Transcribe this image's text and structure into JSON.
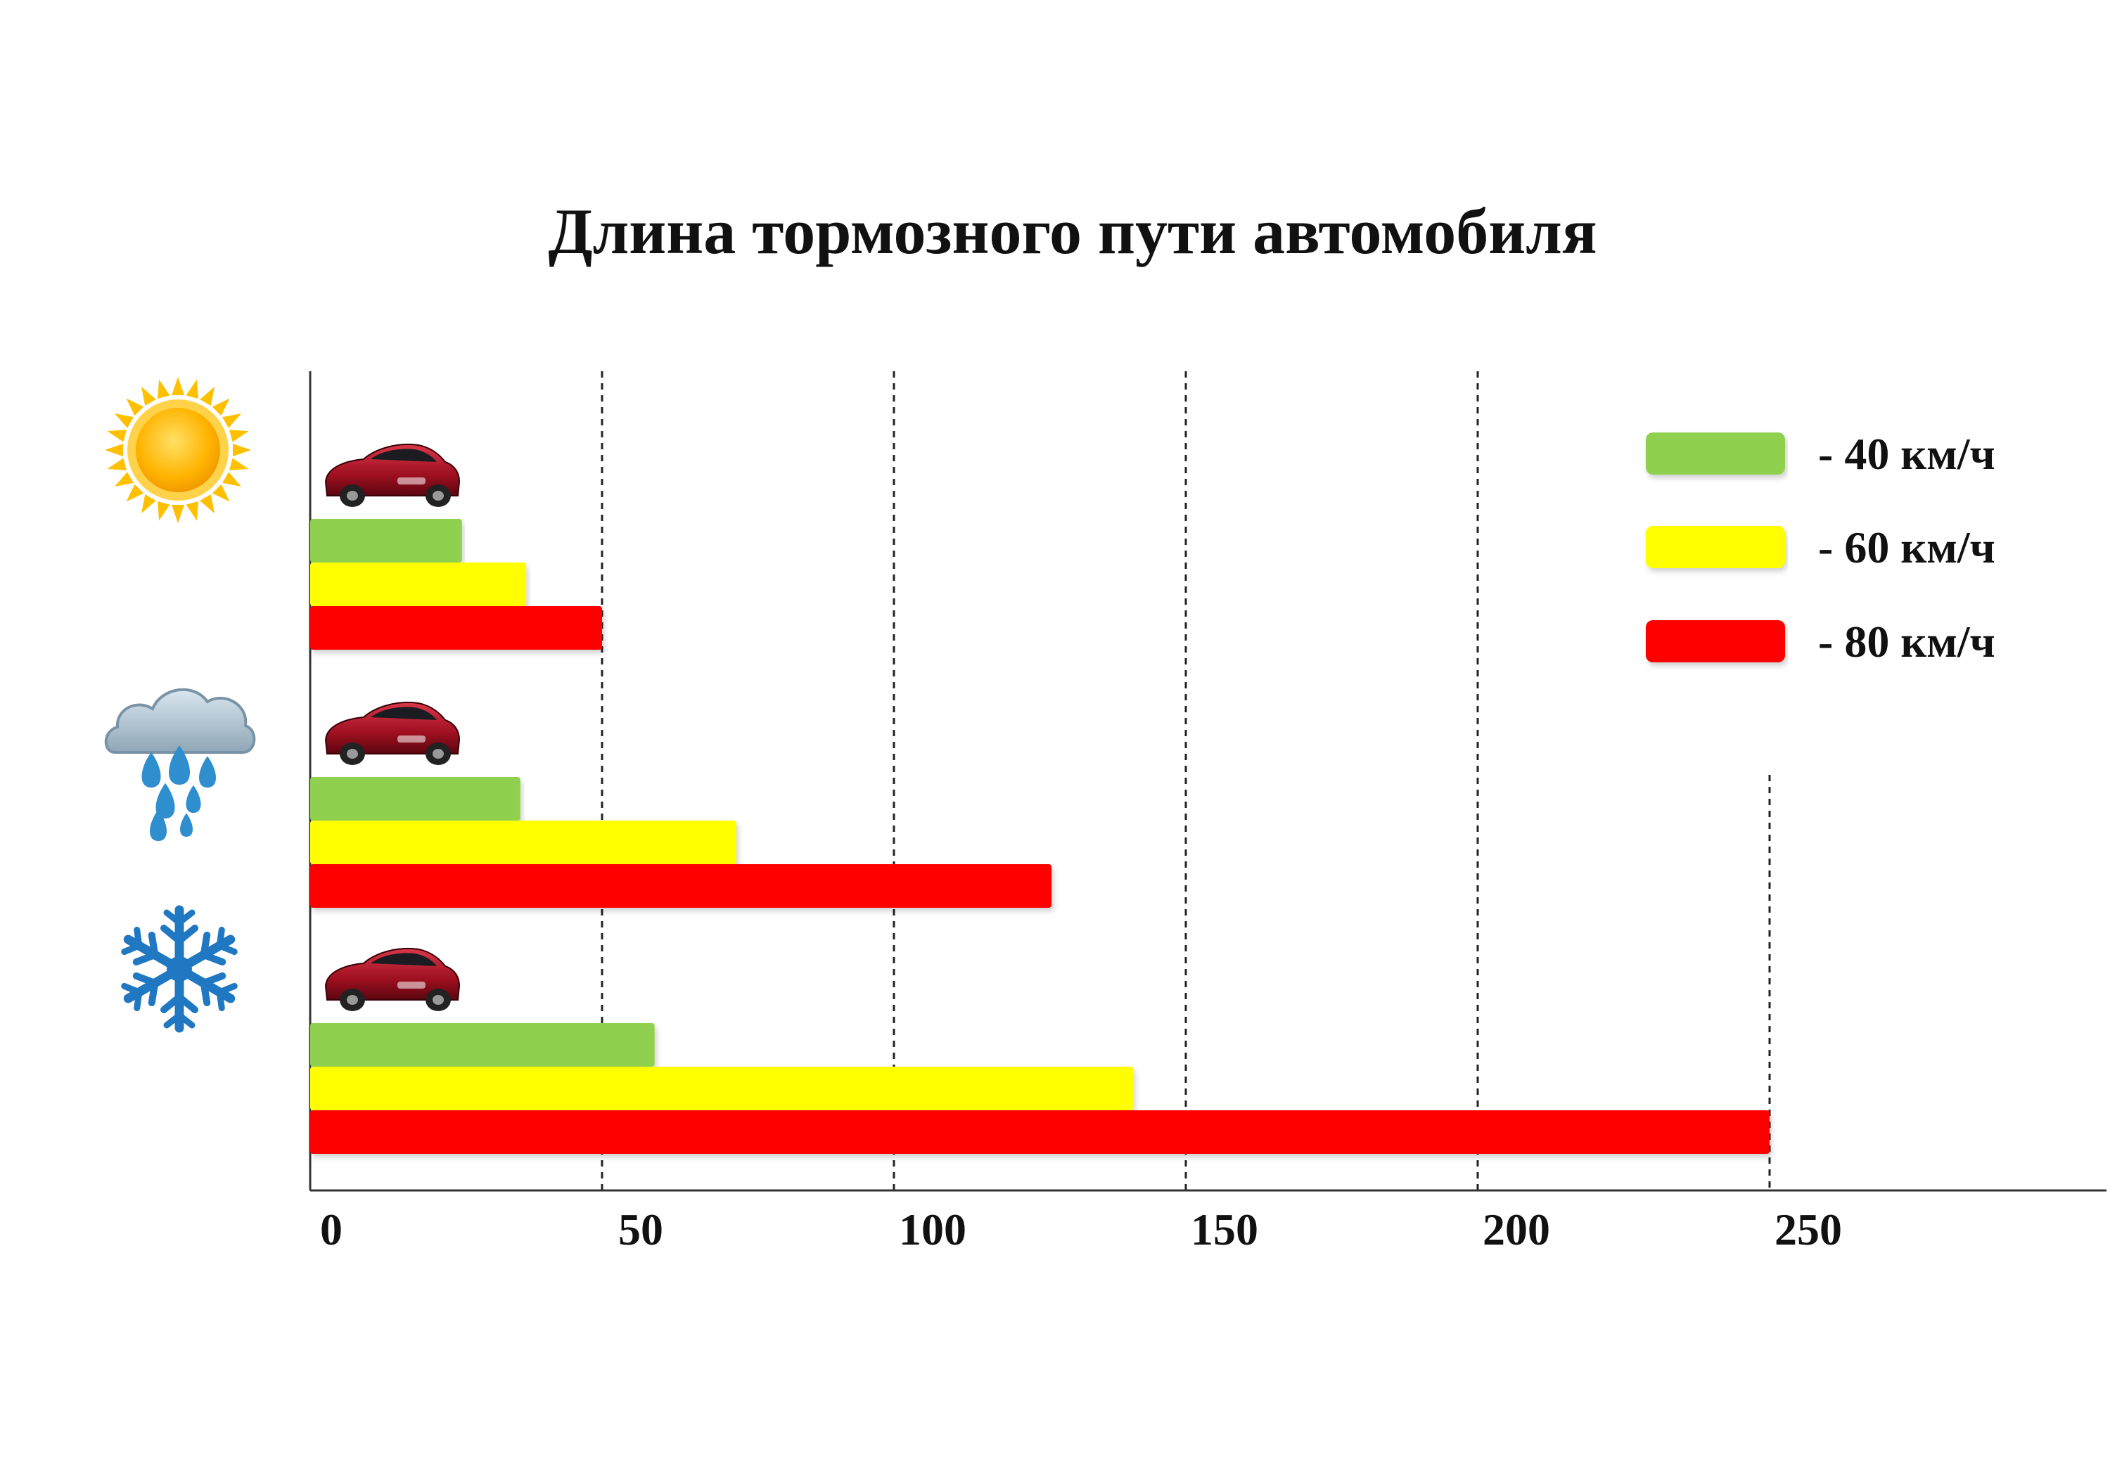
{
  "chart_data": {
    "type": "bar",
    "orientation": "horizontal",
    "title": "Длина тормозного пути автомобиля",
    "categories": [
      "sun-icon",
      "rain-icon",
      "snowflake-icon"
    ],
    "series": [
      {
        "name": "- 40 км/ч",
        "color": "#8fd14f",
        "values": [
          26,
          36,
          59
        ]
      },
      {
        "name": "- 60 км/ч",
        "color": "#ffff00",
        "values": [
          37,
          73,
          141
        ]
      },
      {
        "name": "- 80 км/ч",
        "color": "#ff0000",
        "values": [
          50,
          127,
          250
        ]
      }
    ],
    "xticks": [
      "0",
      "50",
      "100",
      "150",
      "200",
      "250"
    ],
    "xlim": [
      0,
      300
    ],
    "grid": true,
    "legend_position": "top-right",
    "bar_decoration_icon": "car-icon"
  }
}
